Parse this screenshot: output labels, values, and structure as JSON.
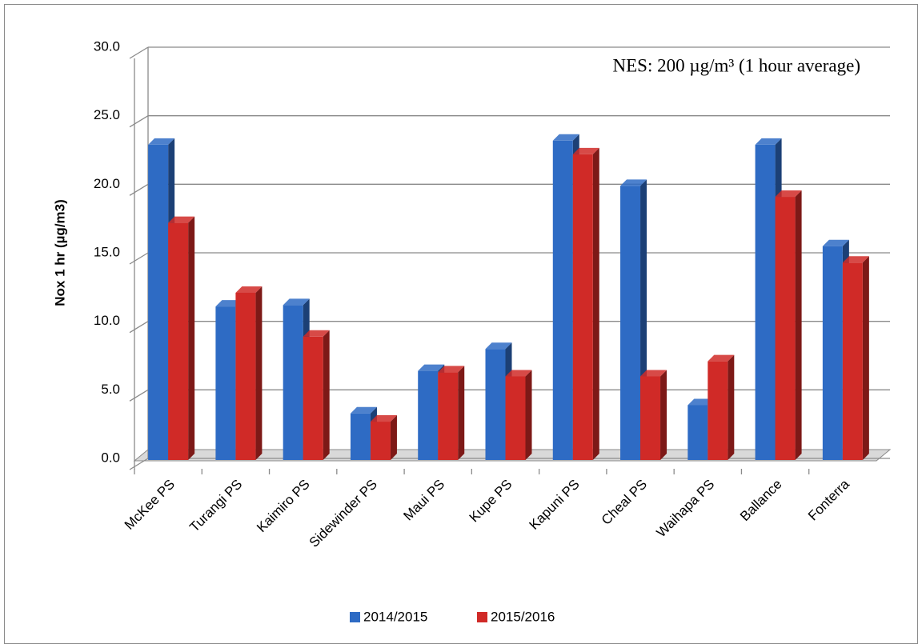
{
  "chart_data": {
    "type": "bar",
    "annotation": "NES: 200 µg/m³ (1 hour average)",
    "y_label": "Nox 1 hr (µg/m3)",
    "categories": [
      "McKee PS",
      "Turangi PS",
      "Kaimiro PS",
      "Sidewinder PS",
      "Maui PS",
      "Kupe PS",
      "Kapuni PS",
      "Cheal PS",
      "Waihapa PS",
      "Ballance",
      "Fonterra"
    ],
    "series": [
      {
        "name": "2014/2015",
        "color": "#2e6bc4",
        "values": [
          23.0,
          11.2,
          11.3,
          3.4,
          6.5,
          8.1,
          23.3,
          20.0,
          4.0,
          23.0,
          15.6
        ]
      },
      {
        "name": "2015/2016",
        "color": "#d02a27",
        "values": [
          17.3,
          12.2,
          9.0,
          2.8,
          6.4,
          6.1,
          22.3,
          6.1,
          7.2,
          19.2,
          14.4
        ]
      }
    ],
    "ylim": [
      0,
      30
    ],
    "yticks": [
      {
        "value": 0,
        "label": "0.0"
      },
      {
        "value": 5,
        "label": "5.0"
      },
      {
        "value": 10,
        "label": "10.0"
      },
      {
        "value": 15,
        "label": "15.0"
      },
      {
        "value": 20,
        "label": "20.0"
      },
      {
        "value": 25,
        "label": "25.0"
      },
      {
        "value": 30,
        "label": "30.0"
      }
    ],
    "grid": true,
    "legend": "bottom"
  }
}
